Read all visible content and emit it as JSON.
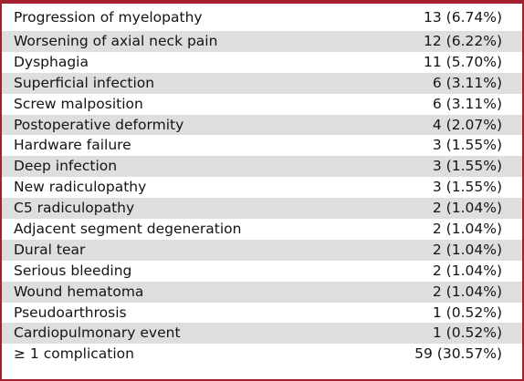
{
  "table": {
    "rows": [
      {
        "label": "Progression of myelopathy",
        "value": "13 (6.74%)"
      },
      {
        "label": "Worsening of axial neck pain",
        "value": "12 (6.22%)"
      },
      {
        "label": "Dysphagia",
        "value": "11 (5.70%)"
      },
      {
        "label": "Superficial infection",
        "value": "6 (3.11%)"
      },
      {
        "label": "Screw malposition",
        "value": "6 (3.11%)"
      },
      {
        "label": "Postoperative deformity",
        "value": "4 (2.07%)"
      },
      {
        "label": "Hardware failure",
        "value": "3 (1.55%)"
      },
      {
        "label": "Deep infection",
        "value": "3 (1.55%)"
      },
      {
        "label": "New radiculopathy",
        "value": "3 (1.55%)"
      },
      {
        "label": "C5 radiculopathy",
        "value": "2 (1.04%)"
      },
      {
        "label": "Adjacent segment degeneration",
        "value": "2 (1.04%)"
      },
      {
        "label": "Dural tear",
        "value": "2 (1.04%)"
      },
      {
        "label": "Serious bleeding",
        "value": "2 (1.04%)"
      },
      {
        "label": "Wound hematoma",
        "value": "2 (1.04%)"
      },
      {
        "label": "Pseudoarthrosis",
        "value": "1 (0.52%)"
      },
      {
        "label": "Cardiopulmonary event",
        "value": "1 (0.52%)"
      },
      {
        "label": "≥ 1 complication",
        "value": "59 (30.57%)"
      }
    ],
    "colors": {
      "border": "#a5202e",
      "shade": "#dedede",
      "text": "#141414"
    }
  }
}
